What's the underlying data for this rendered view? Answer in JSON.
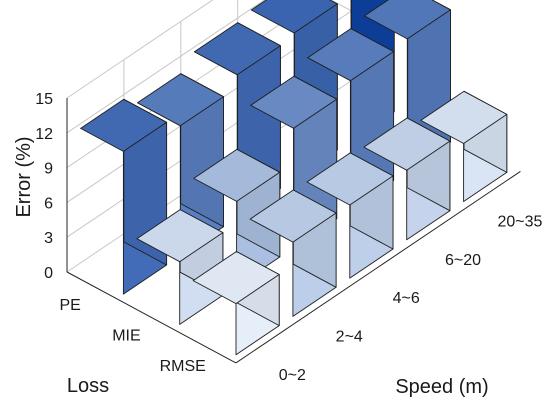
{
  "chart_data": {
    "type": "bar3d",
    "zlabel": "Error (%)",
    "xlabel": "Speed (m)",
    "ylabel": "Loss",
    "zlim": [
      0,
      15
    ],
    "zticks": [
      "0",
      "3",
      "6",
      "9",
      "12",
      "15"
    ],
    "speed_categories": [
      "0~2",
      "2~4",
      "4~6",
      "6~20",
      "20~35"
    ],
    "loss_categories": [
      "PE",
      "MIE",
      "RMSE"
    ],
    "grid": true,
    "colormap": "blues",
    "series": [
      {
        "name": "PE",
        "values": [
          12.3,
          11.2,
          12.3,
          12.6,
          14.8
        ]
      },
      {
        "name": "MIE",
        "values": [
          5.4,
          7.3,
          10.3,
          11.1,
          11.4
        ]
      },
      {
        "name": "RMSE",
        "values": [
          4.4,
          6.4,
          6.3,
          6.0,
          5.0
        ]
      }
    ]
  }
}
